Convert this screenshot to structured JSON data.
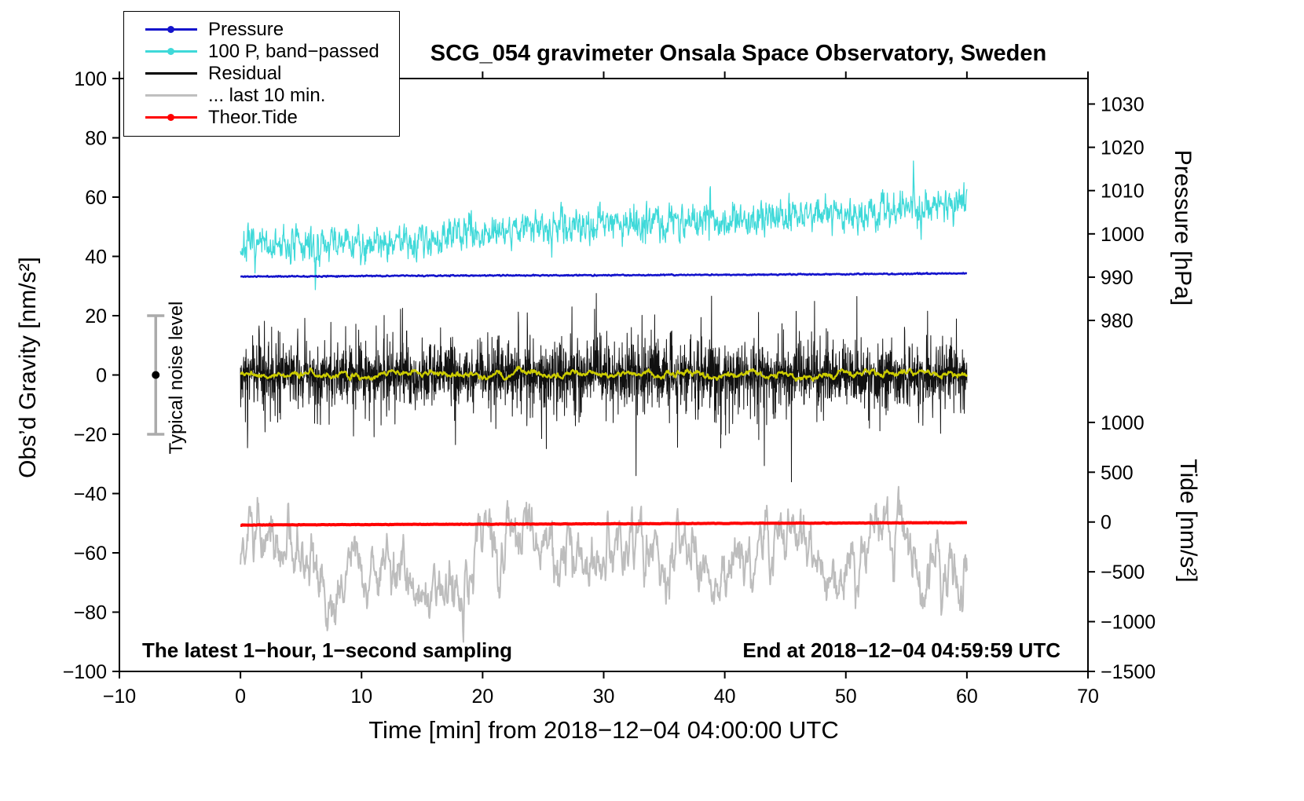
{
  "chart_data": {
    "type": "line",
    "title": "SCG_054 gravimeter Onsala Space Observatory, Sweden",
    "xlabel": "Time [min] from 2018−12−04 04:00:00 UTC",
    "ylabel_left": "Obs’d Gravity [nm/s²]",
    "ylabel_right_pressure": "Pressure [hPa]",
    "ylabel_right_tide": "Tide [nm/s²]",
    "footer_left": "The latest 1−hour, 1−second sampling",
    "footer_right": "End at 2018−12−04 04:59:59 UTC",
    "noise_label": "Typical noise level",
    "xlim": [
      -10,
      70
    ],
    "ylim": [
      -100,
      100
    ],
    "grid": false,
    "legend_position": "top-left",
    "x_ticks": [
      {
        "v": -10,
        "label": "−10"
      },
      {
        "v": 0,
        "label": "0"
      },
      {
        "v": 10,
        "label": "10"
      },
      {
        "v": 20,
        "label": "20"
      },
      {
        "v": 30,
        "label": "30"
      },
      {
        "v": 40,
        "label": "40"
      },
      {
        "v": 50,
        "label": "50"
      },
      {
        "v": 60,
        "label": "60"
      },
      {
        "v": 70,
        "label": "70"
      }
    ],
    "y_ticks": [
      {
        "v": -100,
        "label": "−100"
      },
      {
        "v": -80,
        "label": "−80"
      },
      {
        "v": -60,
        "label": "−60"
      },
      {
        "v": -40,
        "label": "−40"
      },
      {
        "v": -20,
        "label": "−20"
      },
      {
        "v": 0,
        "label": "0"
      },
      {
        "v": 20,
        "label": "20"
      },
      {
        "v": 40,
        "label": "40"
      },
      {
        "v": 60,
        "label": "60"
      },
      {
        "v": 80,
        "label": "80"
      },
      {
        "v": 100,
        "label": "100"
      }
    ],
    "pressure_ticks": [
      {
        "g": 91.4,
        "label": "1030"
      },
      {
        "g": 76.8,
        "label": "1020"
      },
      {
        "g": 62.2,
        "label": "1010"
      },
      {
        "g": 47.6,
        "label": "1000"
      },
      {
        "g": 33.0,
        "label": "990"
      },
      {
        "g": 18.4,
        "label": "980"
      }
    ],
    "tide_ticks": [
      {
        "g": -16.0,
        "label": "1000"
      },
      {
        "g": -32.8,
        "label": "500"
      },
      {
        "g": -49.6,
        "label": "0"
      },
      {
        "g": -66.4,
        "label": "−500"
      },
      {
        "g": -83.2,
        "label": "−1000"
      },
      {
        "g": -100.0,
        "label": "−1500"
      }
    ],
    "noise_bar": {
      "x": -7,
      "y_min": -20,
      "y_max": 20,
      "dot_y": 0,
      "color": "#ababab",
      "dot_color": "#000000"
    },
    "legend": [
      {
        "label": "Pressure",
        "color": "#1414cc",
        "dot": true
      },
      {
        "label": "100 P, band−passed",
        "color": "#3fd9d9",
        "dot": true
      },
      {
        "label": "Residual",
        "color": "#000000",
        "dot": false
      },
      {
        "label": "... last 10 min.",
        "color": "#bfbfbf",
        "dot": false
      },
      {
        "label": "Theor.Tide",
        "color": "#ff0000",
        "dot": true
      }
    ],
    "series": [
      {
        "name": "100 P, band−passed",
        "color": "#3fd9d9",
        "width": 1.3,
        "x_range": [
          0,
          60
        ],
        "n": 1700,
        "seed": 7,
        "persist": 0.45,
        "noise": 3.0,
        "anchors_x": [
          0,
          5,
          10,
          15,
          20,
          25,
          30,
          35,
          40,
          45,
          50,
          55,
          60
        ],
        "anchors_y": [
          43,
          43.5,
          44.5,
          46,
          48.5,
          50,
          51,
          52,
          52.5,
          53.5,
          54.5,
          56,
          57.5
        ],
        "spikes": [
          {
            "x": 6.2,
            "dy": -14,
            "w": 0.06
          },
          {
            "x": 38.8,
            "dy": 12,
            "w": 0.05
          },
          {
            "x": 39.2,
            "dy": -6,
            "w": 0.05
          },
          {
            "x": 55.6,
            "dy": 16,
            "w": 0.06
          },
          {
            "x": 56.2,
            "dy": -8,
            "w": 0.05
          }
        ]
      },
      {
        "name": "Pressure",
        "color": "#1414cc",
        "width": 2.6,
        "x_range": [
          0,
          60
        ],
        "n": 1000,
        "seed": 11,
        "persist": 0.3,
        "noise": 0.1,
        "anchors_x": [
          0,
          10,
          20,
          30,
          40,
          50,
          60
        ],
        "anchors_y": [
          33.2,
          33.4,
          33.55,
          33.65,
          33.8,
          34.0,
          34.25
        ]
      },
      {
        "name": "Residual",
        "color": "#111111",
        "width": 1,
        "x_range": [
          0,
          60
        ],
        "n": 3400,
        "seed": 3,
        "laplace": true,
        "noise": 4.2,
        "anchors_x": [
          0,
          60
        ],
        "anchors_y": [
          0,
          0
        ]
      },
      {
        "name": "Residual smoothed",
        "color": "#cccc00",
        "width": 2.3,
        "x_range": [
          0,
          60
        ],
        "n": 1300,
        "seed": 5,
        "persist": 0.88,
        "noise": 0.8,
        "anchors_x": [
          0,
          60
        ],
        "anchors_y": [
          0.3,
          0.3
        ]
      },
      {
        "name": "... last 10 min.",
        "color": "#bdbdbd",
        "width": 2,
        "x_range": [
          0,
          60
        ],
        "n": 1500,
        "seed": 9,
        "persist": 0.93,
        "noise": 9.5,
        "anchors_x": [
          0,
          30,
          60
        ],
        "anchors_y": [
          -64,
          -64.5,
          -64
        ]
      },
      {
        "name": "Theor.Tide",
        "color": "#ff0000",
        "width": 4,
        "x_range": [
          0,
          60
        ],
        "n": 700,
        "seed": 13,
        "persist": 0.3,
        "noise": 0.04,
        "anchors_x": [
          0,
          30,
          60
        ],
        "anchors_y": [
          -50.6,
          -50.2,
          -49.8
        ]
      }
    ]
  }
}
